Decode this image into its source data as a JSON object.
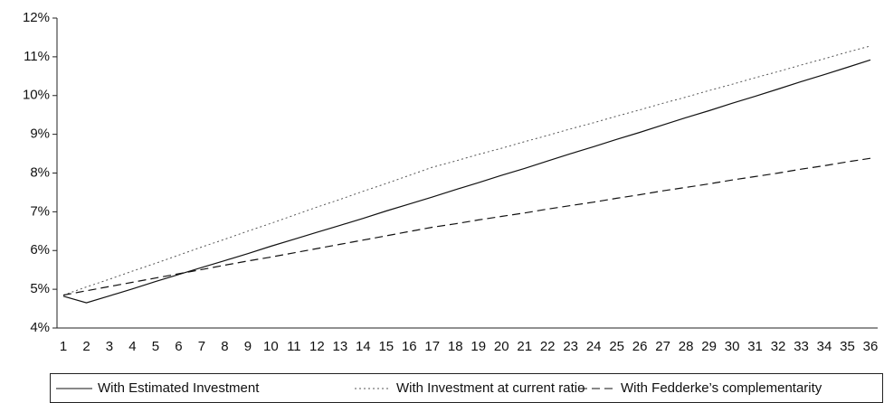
{
  "chart_data": {
    "type": "line",
    "categories": [
      "1",
      "2",
      "3",
      "4",
      "5",
      "6",
      "7",
      "8",
      "9",
      "10",
      "11",
      "12",
      "13",
      "14",
      "15",
      "16",
      "17",
      "18",
      "19",
      "20",
      "21",
      "22",
      "23",
      "24",
      "25",
      "26",
      "27",
      "28",
      "29",
      "30",
      "31",
      "32",
      "33",
      "34",
      "35",
      "36"
    ],
    "ylim": [
      4,
      12
    ],
    "yticks": [
      {
        "value": 4,
        "label": "4%"
      },
      {
        "value": 5,
        "label": "5%"
      },
      {
        "value": 6,
        "label": "6%"
      },
      {
        "value": 7,
        "label": "7%"
      },
      {
        "value": 8,
        "label": "8%"
      },
      {
        "value": 9,
        "label": "9%"
      },
      {
        "value": 10,
        "label": "10%"
      },
      {
        "value": 11,
        "label": "11%"
      },
      {
        "value": 12,
        "label": "12%"
      }
    ],
    "grid": false,
    "legend": "bottom",
    "series": [
      {
        "name": "With Estimated Investment",
        "color": "#111111",
        "style": "solid",
        "values": [
          4.82,
          4.65,
          4.83,
          5.01,
          5.2,
          5.38,
          5.56,
          5.74,
          5.92,
          6.11,
          6.29,
          6.47,
          6.65,
          6.83,
          7.02,
          7.2,
          7.38,
          7.57,
          7.75,
          7.94,
          8.12,
          8.31,
          8.5,
          8.68,
          8.87,
          9.05,
          9.24,
          9.43,
          9.61,
          9.8,
          9.98,
          10.17,
          10.36,
          10.54,
          10.73,
          10.92
        ]
      },
      {
        "name": "With Investment at current ratio",
        "color": "#555555",
        "style": "dotted",
        "values": [
          4.85,
          5.06,
          5.26,
          5.47,
          5.67,
          5.88,
          6.09,
          6.29,
          6.5,
          6.7,
          6.91,
          7.12,
          7.32,
          7.53,
          7.73,
          7.94,
          8.15,
          8.31,
          8.48,
          8.64,
          8.81,
          8.97,
          9.14,
          9.3,
          9.47,
          9.63,
          9.8,
          9.96,
          10.13,
          10.29,
          10.46,
          10.62,
          10.79,
          10.95,
          11.12,
          11.28
        ]
      },
      {
        "name": "With Fedderke’s complementarity",
        "color": "#111111",
        "style": "dashed",
        "values": [
          4.85,
          4.96,
          5.07,
          5.18,
          5.29,
          5.4,
          5.51,
          5.62,
          5.73,
          5.83,
          5.94,
          6.05,
          6.16,
          6.27,
          6.38,
          6.49,
          6.6,
          6.69,
          6.79,
          6.88,
          6.97,
          7.07,
          7.16,
          7.25,
          7.35,
          7.44,
          7.54,
          7.63,
          7.72,
          7.82,
          7.91,
          8.0,
          8.1,
          8.19,
          8.29,
          8.38
        ]
      }
    ]
  }
}
